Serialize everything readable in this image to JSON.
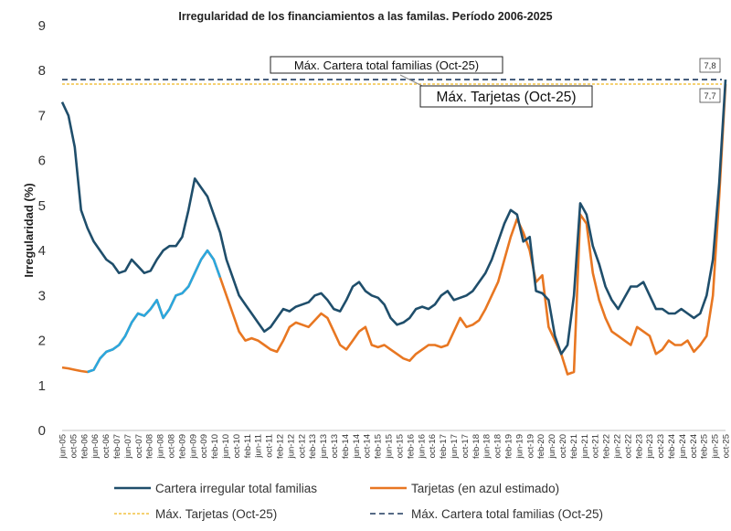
{
  "chart_data": {
    "type": "line",
    "title": "Irregularidad de los financiamientos  a las familas. Período 2006-2025",
    "ylabel": "Irregularidad (%)",
    "xlabel": "",
    "ylim": [
      0,
      9
    ],
    "yticks": [
      "0",
      "1",
      "2",
      "3",
      "4",
      "5",
      "6",
      "7",
      "8",
      "9"
    ],
    "grid": false,
    "legend_position": "bottom",
    "x_tick_labels": [
      "jun-05",
      "oct-05",
      "feb-06",
      "jun-06",
      "oct-06",
      "feb-07",
      "jun-07",
      "oct-07",
      "feb-08",
      "jun-08",
      "oct-08",
      "feb-09",
      "jun-09",
      "oct-09",
      "feb-10",
      "jun-10",
      "oct-10",
      "feb-11",
      "jun-11",
      "oct-11",
      "feb-12",
      "jun-12",
      "oct-12",
      "feb-13",
      "jun-13",
      "oct-13",
      "feb-14",
      "jun-14",
      "oct-14",
      "feb-15",
      "jun-15",
      "oct-15",
      "feb-16",
      "jun-16",
      "oct-16",
      "feb-17",
      "jun-17",
      "oct-17",
      "feb-18",
      "jun-18",
      "oct-18",
      "feb-19",
      "jun-19",
      "oct-19",
      "feb-20",
      "jun-20",
      "oct-20",
      "feb-21",
      "jun-21",
      "oct-21",
      "feb-22",
      "jun-22",
      "oct-22",
      "feb-23",
      "jun-23",
      "oct-23",
      "feb-24",
      "jun-24",
      "oct-24",
      "feb-25",
      "jun-25",
      "oct-25"
    ],
    "series": [
      {
        "name": "Cartera irregular total familias",
        "color": "#1f4e6b",
        "values": [
          7.3,
          7.0,
          6.3,
          4.9,
          4.5,
          4.2,
          4.0,
          3.8,
          3.7,
          3.5,
          3.55,
          3.8,
          3.65,
          3.5,
          3.55,
          3.8,
          4.0,
          4.1,
          4.1,
          4.3,
          4.9,
          5.6,
          5.4,
          5.2,
          4.8,
          4.4,
          3.8,
          3.4,
          3.0,
          2.8,
          2.6,
          2.4,
          2.2,
          2.3,
          2.5,
          2.7,
          2.65,
          2.75,
          2.8,
          2.85,
          3.0,
          3.05,
          2.9,
          2.7,
          2.65,
          2.9,
          3.2,
          3.3,
          3.1,
          3.0,
          2.95,
          2.8,
          2.5,
          2.35,
          2.4,
          2.5,
          2.7,
          2.75,
          2.7,
          2.8,
          3.0,
          3.1,
          2.9,
          2.95,
          3.0,
          3.1,
          3.3,
          3.5,
          3.8,
          4.2,
          4.6,
          4.9,
          4.8,
          4.2,
          4.3,
          3.1,
          3.05,
          2.9,
          2.1,
          1.7,
          1.9,
          3.0,
          5.05,
          4.8,
          4.1,
          3.7,
          3.2,
          2.9,
          2.7,
          2.95,
          3.2,
          3.2,
          3.3,
          3.0,
          2.7,
          2.7,
          2.6,
          2.6,
          2.7,
          2.6,
          2.5,
          2.6,
          3.0,
          3.8,
          5.5,
          7.8
        ]
      },
      {
        "name": "Tarjetas (en azul estimado)",
        "color": "#e87722",
        "values": [
          1.4,
          1.38,
          1.35,
          1.32,
          1.3,
          1.35,
          1.6,
          1.75,
          1.8,
          1.9,
          2.1,
          2.4,
          2.6,
          2.55,
          2.7,
          2.9,
          2.5,
          2.7,
          3.0,
          3.05,
          3.2,
          3.5,
          3.8,
          4.0,
          3.8,
          3.4,
          3.0,
          2.6,
          2.2,
          2.0,
          2.05,
          2.0,
          1.9,
          1.8,
          1.75,
          2.0,
          2.3,
          2.4,
          2.35,
          2.3,
          2.45,
          2.6,
          2.5,
          2.2,
          1.9,
          1.8,
          2.0,
          2.2,
          2.3,
          1.9,
          1.85,
          1.9,
          1.8,
          1.7,
          1.6,
          1.55,
          1.7,
          1.8,
          1.9,
          1.9,
          1.85,
          1.9,
          2.2,
          2.5,
          2.3,
          2.35,
          2.45,
          2.7,
          3.0,
          3.3,
          3.8,
          4.3,
          4.7,
          4.4,
          4.0,
          3.3,
          3.45,
          2.3,
          2.0,
          1.7,
          1.25,
          1.3,
          4.8,
          4.6,
          3.5,
          2.9,
          2.5,
          2.2,
          2.1,
          2.0,
          1.9,
          2.3,
          2.2,
          2.1,
          1.7,
          1.8,
          2.0,
          1.9,
          1.9,
          2.0,
          1.75,
          1.9,
          2.1,
          3.0,
          5.2,
          7.7
        ]
      },
      {
        "name": "Máx. Tarjetas (Oct-25)",
        "color": "#f2c244",
        "constant": 7.7
      },
      {
        "name": "Máx. Cartera total familias (Oct-25)",
        "color": "#1f3a5f",
        "constant": 7.8
      }
    ],
    "estimated_segment": {
      "label": "estimado",
      "color": "#2aa7df",
      "from_index": 4,
      "to_index": 25
    },
    "annotations": {
      "max_cartera_label": "Máx. Cartera total familias (Oct-25)",
      "max_tarjetas_label": "Máx. Tarjetas (Oct-25)",
      "max_cartera_value": "7,8",
      "max_tarjetas_value": "7,7"
    }
  }
}
